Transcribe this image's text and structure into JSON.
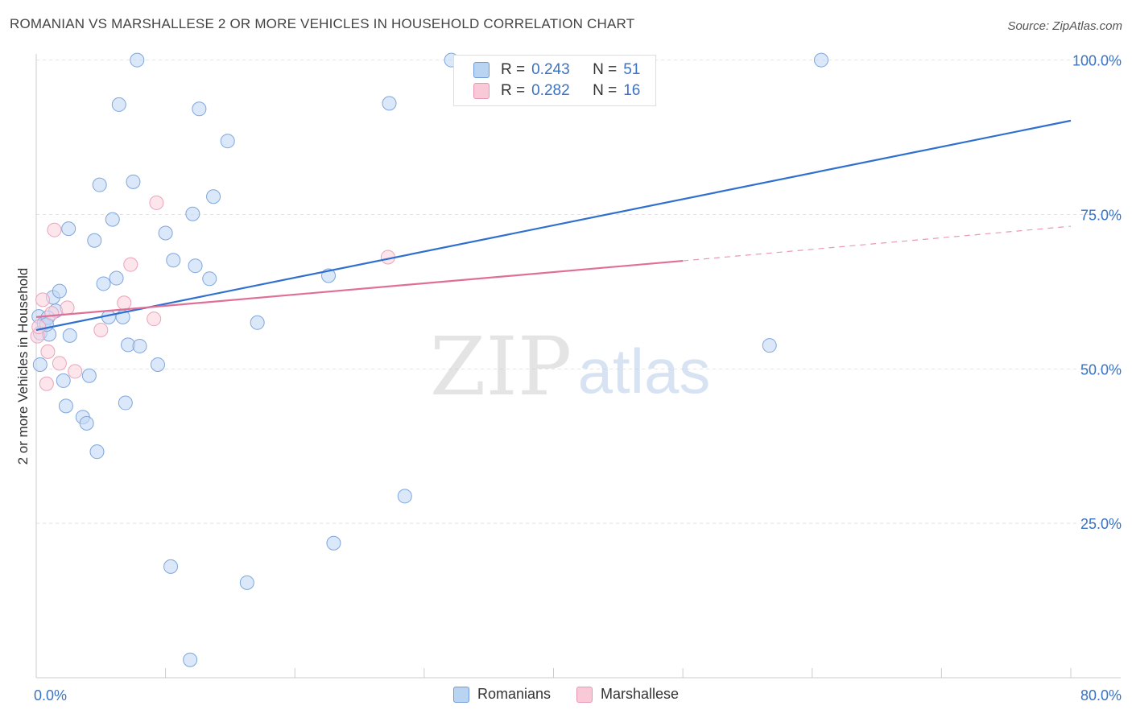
{
  "title": "ROMANIAN VS MARSHALLESE 2 OR MORE VEHICLES IN HOUSEHOLD CORRELATION CHART",
  "source": "Source: ZipAtlas.com",
  "watermark": {
    "zip": "ZIP",
    "atlas": "atlas"
  },
  "legend_top": {
    "rows": [
      {
        "r_label": "R =",
        "r_value": "0.243",
        "n_label": "N =",
        "n_value": "51",
        "color": "#b9d3f3",
        "stroke": "#6f9ad6"
      },
      {
        "r_label": "R =",
        "r_value": "0.282",
        "n_label": "N =",
        "n_value": "16",
        "color": "#f9c9d7",
        "stroke": "#e897b0"
      }
    ]
  },
  "legend_bottom": [
    {
      "label": "Romanians",
      "color": "#b9d3f3",
      "stroke": "#6f9ad6"
    },
    {
      "label": "Marshallese",
      "color": "#f9c9d7",
      "stroke": "#e897b0"
    }
  ],
  "colors": {
    "blue": "#3a72c4",
    "blue_line": "#2f6fce",
    "pink_line": "#e06f98",
    "grid": "#dddddd"
  },
  "chart_data": {
    "type": "scatter",
    "title": "ROMANIAN VS MARSHALLESE 2 OR MORE VEHICLES IN HOUSEHOLD CORRELATION CHART",
    "xlabel": "",
    "ylabel": "2 or more Vehicles in Household",
    "xlim": [
      0,
      80
    ],
    "ylim": [
      0,
      101
    ],
    "x_tick_labels": [
      "0.0%",
      "80.0%"
    ],
    "y_ticks": [
      25,
      50,
      75,
      100
    ],
    "y_tick_labels": [
      "25.0%",
      "50.0%",
      "75.0%",
      "100.0%"
    ],
    "grid": true,
    "legend_position": "top-center",
    "series": [
      {
        "name": "Romanians",
        "points": [
          [
            0.2,
            58.5
          ],
          [
            0.3,
            55.8
          ],
          [
            0.3,
            50.7
          ],
          [
            0.6,
            57.4
          ],
          [
            1.0,
            55.6
          ],
          [
            1.3,
            61.6
          ],
          [
            1.5,
            59.4
          ],
          [
            1.8,
            62.6
          ],
          [
            2.1,
            48.1
          ],
          [
            2.3,
            44.0
          ],
          [
            2.5,
            72.7
          ],
          [
            2.6,
            55.4
          ],
          [
            3.6,
            42.2
          ],
          [
            3.9,
            41.2
          ],
          [
            4.1,
            48.9
          ],
          [
            4.5,
            70.8
          ],
          [
            4.7,
            36.6
          ],
          [
            4.9,
            79.8
          ],
          [
            5.2,
            63.8
          ],
          [
            5.6,
            58.4
          ],
          [
            5.9,
            74.2
          ],
          [
            6.2,
            64.7
          ],
          [
            6.4,
            92.8
          ],
          [
            6.7,
            58.4
          ],
          [
            6.9,
            44.5
          ],
          [
            7.1,
            53.9
          ],
          [
            7.5,
            80.3
          ],
          [
            7.8,
            100.0
          ],
          [
            8.0,
            53.7
          ],
          [
            9.4,
            50.7
          ],
          [
            10.0,
            72.0
          ],
          [
            10.4,
            18.0
          ],
          [
            10.6,
            67.6
          ],
          [
            11.9,
            2.9
          ],
          [
            12.1,
            75.1
          ],
          [
            12.3,
            66.7
          ],
          [
            12.6,
            92.1
          ],
          [
            13.4,
            64.6
          ],
          [
            13.7,
            77.9
          ],
          [
            14.8,
            86.9
          ],
          [
            16.3,
            15.4
          ],
          [
            17.1,
            57.5
          ],
          [
            22.6,
            65.1
          ],
          [
            23.0,
            21.8
          ],
          [
            27.3,
            93.0
          ],
          [
            28.5,
            29.4
          ],
          [
            32.1,
            100.0
          ],
          [
            56.7,
            53.8
          ],
          [
            60.7,
            100.0
          ],
          [
            0.9,
            58.3
          ],
          [
            0.8,
            57.2
          ]
        ]
      },
      {
        "name": "Marshallese",
        "points": [
          [
            0.1,
            55.3
          ],
          [
            0.2,
            56.8
          ],
          [
            0.5,
            61.2
          ],
          [
            0.8,
            47.6
          ],
          [
            0.9,
            52.8
          ],
          [
            1.2,
            59.0
          ],
          [
            1.4,
            72.5
          ],
          [
            1.8,
            50.9
          ],
          [
            2.4,
            59.9
          ],
          [
            3.0,
            49.6
          ],
          [
            5.0,
            56.3
          ],
          [
            6.8,
            60.7
          ],
          [
            7.3,
            66.9
          ],
          [
            9.1,
            58.1
          ],
          [
            9.3,
            76.9
          ],
          [
            27.2,
            68.1
          ]
        ]
      }
    ],
    "trend_lines": [
      {
        "series": "Romanians",
        "x": [
          0,
          80
        ],
        "y": [
          56.3,
          90.2
        ]
      },
      {
        "series": "Marshallese",
        "x": [
          0,
          50
        ],
        "y": [
          58.4,
          67.5
        ],
        "dashed_extension": {
          "x": [
            50,
            80
          ],
          "y": [
            67.5,
            73.1
          ]
        }
      }
    ]
  }
}
